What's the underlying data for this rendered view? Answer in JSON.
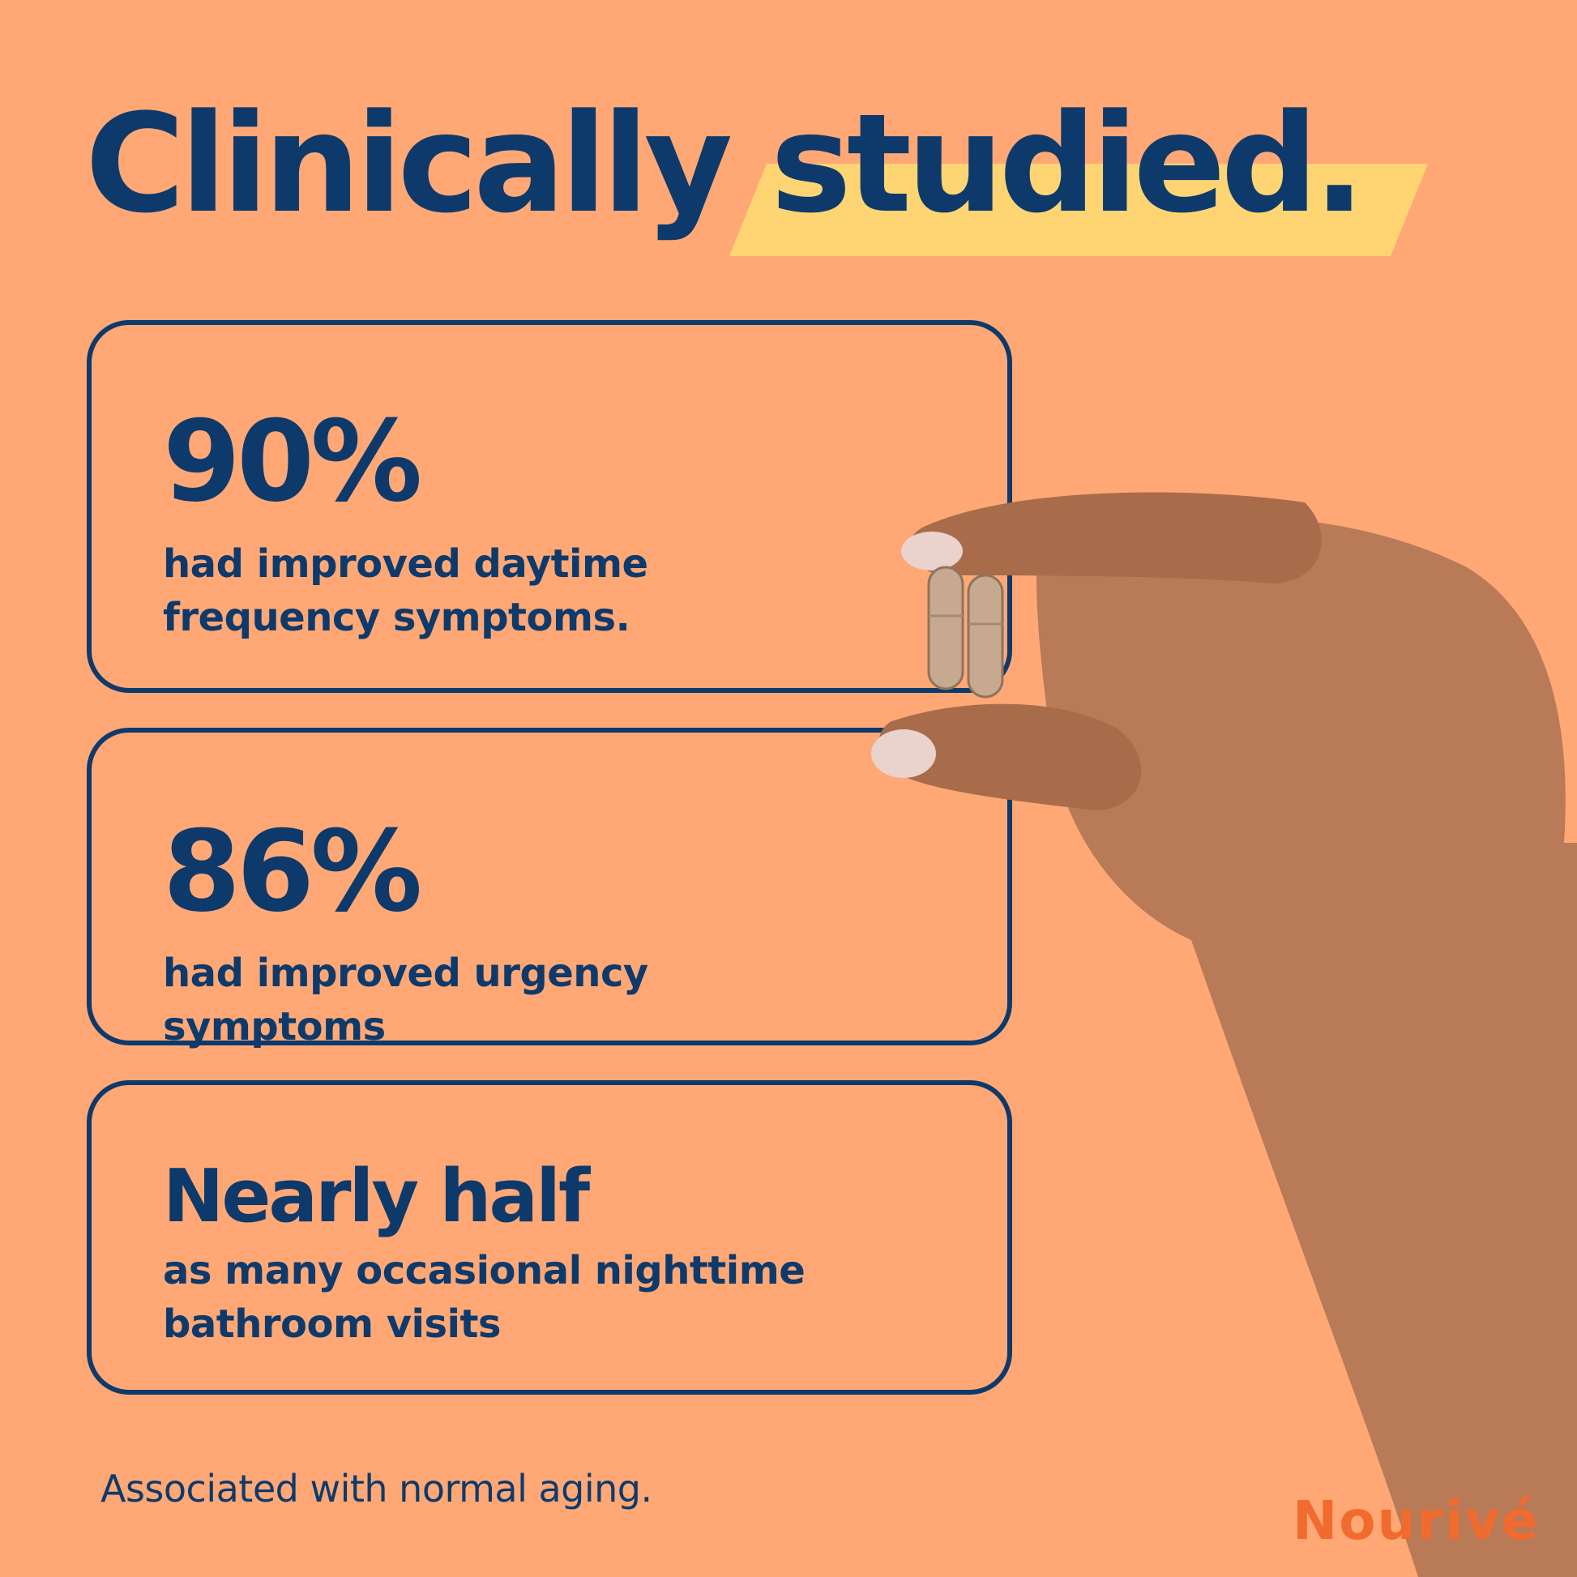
{
  "headline": {
    "part1": "Clinically",
    "part2": "studied."
  },
  "stats": [
    {
      "value": "90%",
      "description": "had improved daytime frequency symptoms."
    },
    {
      "value": "86%",
      "description": "had improved urgency symptoms"
    },
    {
      "value": "Nearly half",
      "description": "as many occasional nighttime bathroom visits"
    }
  ],
  "footnote": "Associated with normal aging.",
  "brand": "Nourivé",
  "colors": {
    "background": "#FFA876",
    "text": "#0E3A6B",
    "highlight": "#FFD573",
    "brand": "#F26B2E"
  }
}
